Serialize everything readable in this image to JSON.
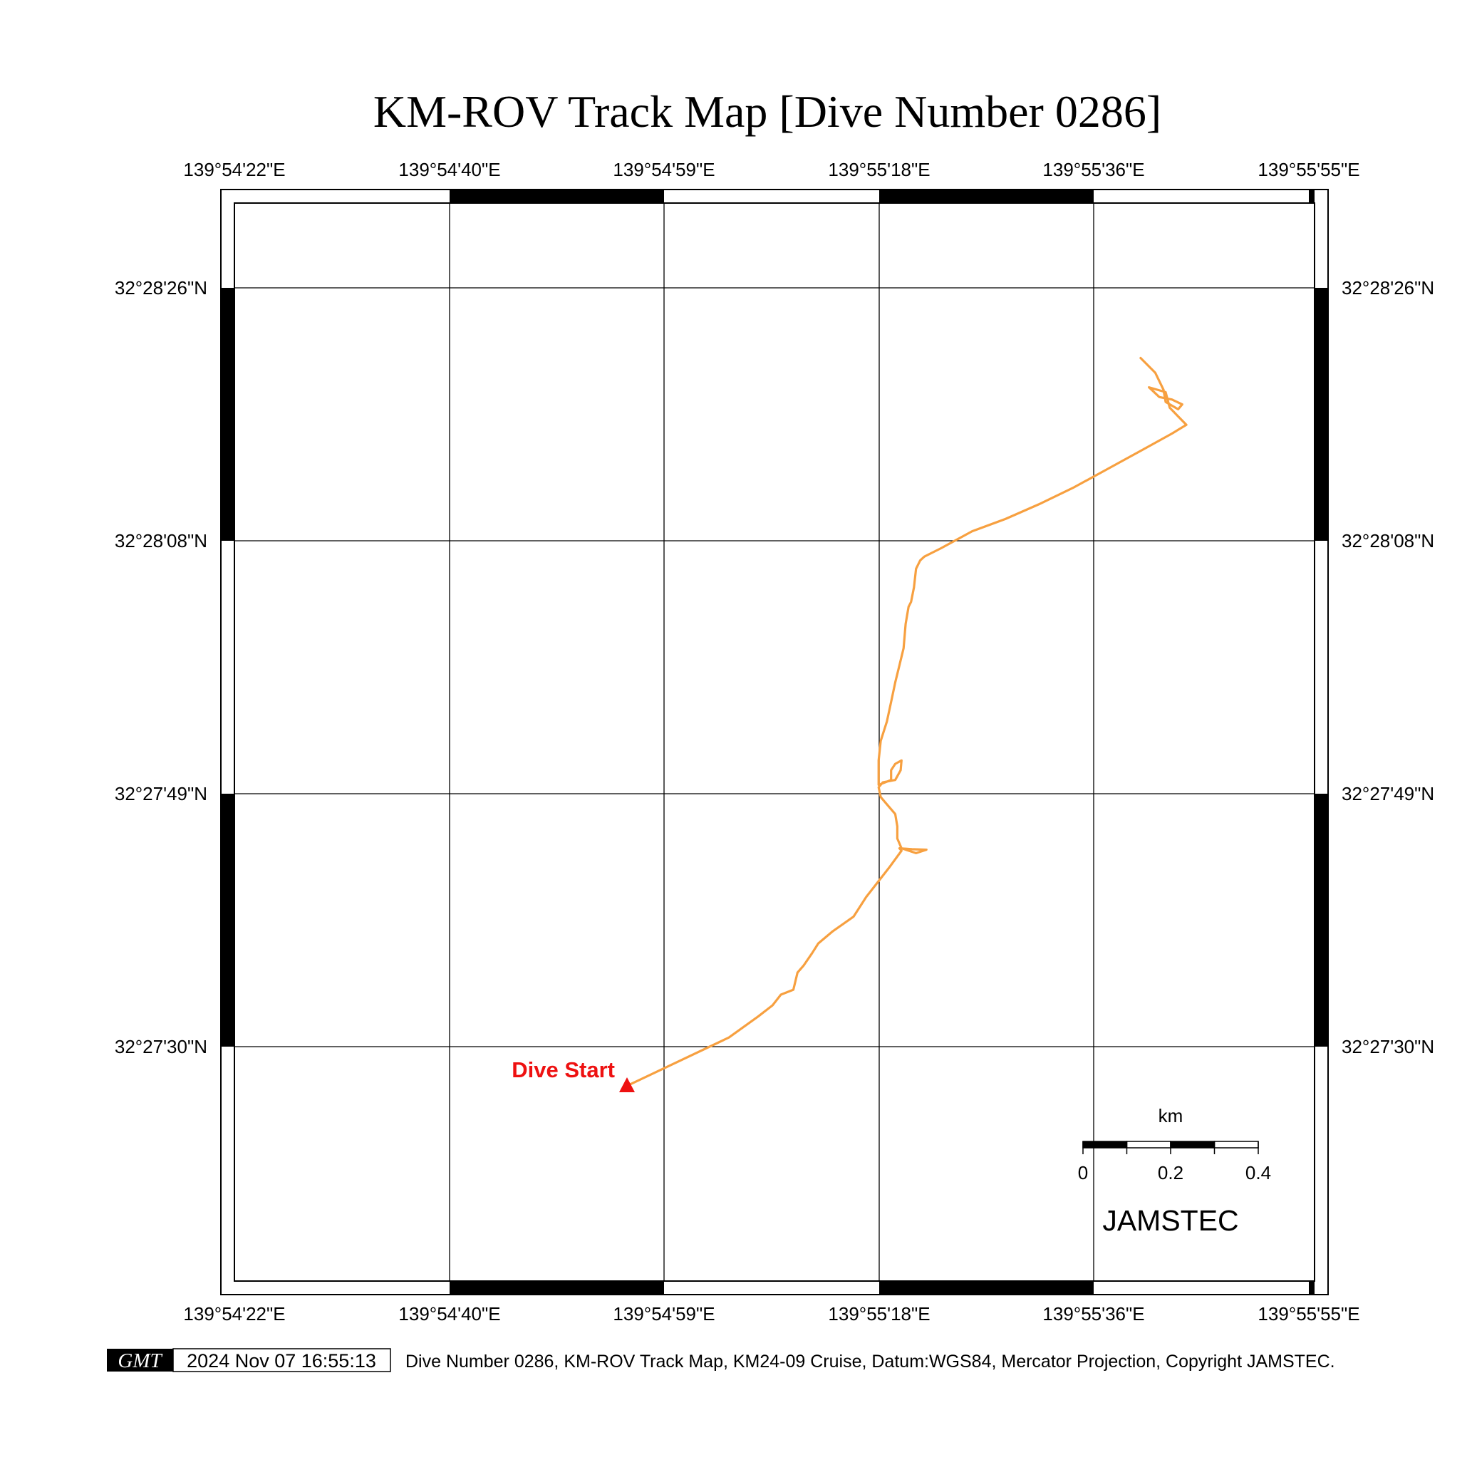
{
  "title": "KM-ROV Track Map [Dive Number 0286]",
  "map": {
    "lon_labels": [
      "139°54'22\"E",
      "139°54'40\"E",
      "139°54'59\"E",
      "139°55'18\"E",
      "139°55'36\"E",
      "139°55'55\"E"
    ],
    "lat_labels": [
      "32°28'26\"N",
      "32°28'08\"N",
      "32°27'49\"N",
      "32°27'30\"N"
    ],
    "track_color": "#f7a040",
    "start_marker_color": "#ee1111",
    "start_label": "Dive Start",
    "grid": true,
    "track": [
      [
        139.91555,
        32.45753
      ],
      [
        139.918,
        32.45852
      ],
      [
        139.9187,
        32.45895
      ],
      [
        139.91905,
        32.45918
      ],
      [
        139.91925,
        32.4594
      ],
      [
        139.91955,
        32.4595
      ],
      [
        139.91965,
        32.45985
      ],
      [
        139.9198,
        32.46
      ],
      [
        139.92,
        32.46025
      ],
      [
        139.92015,
        32.46045
      ],
      [
        139.9205,
        32.4607
      ],
      [
        139.92075,
        32.46085
      ],
      [
        139.921,
        32.461
      ],
      [
        139.9213,
        32.4614
      ],
      [
        139.92185,
        32.462
      ],
      [
        139.92215,
        32.46235
      ],
      [
        139.9221,
        32.4624
      ],
      [
        139.9224,
        32.46238
      ],
      [
        139.92275,
        32.46237
      ],
      [
        139.9225,
        32.4623
      ],
      [
        139.92215,
        32.4624
      ],
      [
        139.92205,
        32.4626
      ],
      [
        139.92205,
        32.46285
      ],
      [
        139.922,
        32.4631
      ],
      [
        139.9218,
        32.4633
      ],
      [
        139.92165,
        32.46345
      ],
      [
        139.9216,
        32.46365
      ],
      [
        139.9217,
        32.46375
      ],
      [
        139.922,
        32.4638
      ],
      [
        139.92213,
        32.464
      ],
      [
        139.92215,
        32.4642
      ],
      [
        139.922,
        32.46413
      ],
      [
        139.9219,
        32.464
      ],
      [
        139.9219,
        32.4638
      ],
      [
        139.9216,
        32.4637
      ],
      [
        139.9216,
        32.4639
      ],
      [
        139.9216,
        32.4642
      ],
      [
        139.92165,
        32.4646
      ],
      [
        139.9218,
        32.465
      ],
      [
        139.9219,
        32.4654
      ],
      [
        139.922,
        32.4658
      ],
      [
        139.9221,
        32.46615
      ],
      [
        139.9222,
        32.4665
      ],
      [
        139.92225,
        32.467
      ],
      [
        139.92232,
        32.46735
      ],
      [
        139.92238,
        32.46745
      ],
      [
        139.92245,
        32.46775
      ],
      [
        139.9225,
        32.46813
      ],
      [
        139.9226,
        32.4683
      ],
      [
        139.9227,
        32.46838
      ],
      [
        139.9231,
        32.46855
      ],
      [
        139.92385,
        32.4689
      ],
      [
        139.92465,
        32.46915
      ],
      [
        139.92545,
        32.46945
      ],
      [
        139.9263,
        32.4698
      ],
      [
        139.92705,
        32.47015
      ],
      [
        139.9278,
        32.4705
      ],
      [
        139.92865,
        32.4709
      ],
      [
        139.929,
        32.47108
      ],
      [
        139.9286,
        32.47143
      ],
      [
        139.9285,
        32.47175
      ],
      [
        139.9281,
        32.47185
      ],
      [
        139.92835,
        32.47165
      ],
      [
        139.92865,
        32.4716
      ],
      [
        139.9289,
        32.4715
      ],
      [
        139.9288,
        32.4714
      ],
      [
        139.9285,
        32.47155
      ],
      [
        139.92845,
        32.4718
      ],
      [
        139.92825,
        32.47215
      ],
      [
        139.9279,
        32.47245
      ]
    ],
    "scalebar": {
      "unit_label": "km",
      "tick_labels": [
        "0",
        "0.2",
        "0.4"
      ],
      "max_km": 0.4
    },
    "credit": "JAMSTEC"
  },
  "footer": {
    "logo_text": "GMT",
    "timestamp": "2024 Nov 07 16:55:13",
    "caption": "Dive Number 0286, KM-ROV Track Map, KM24-09 Cruise, Datum:WGS84, Mercator Projection, Copyright JAMSTEC."
  }
}
